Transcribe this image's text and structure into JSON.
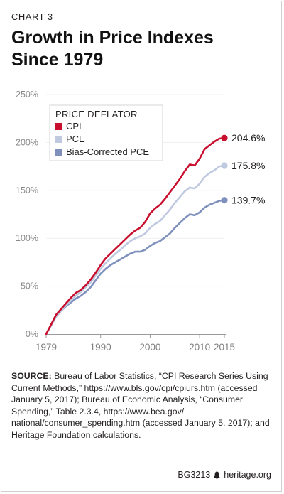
{
  "header": {
    "kicker": "CHART 3",
    "title_line1": "Growth in Price Indexes",
    "title_line2": "Since 1979"
  },
  "chart_data": {
    "type": "line",
    "title": "Growth in Price Indexes Since 1979",
    "xlabel": "",
    "ylabel": "",
    "xlim": [
      1979,
      2015
    ],
    "ylim": [
      0,
      250
    ],
    "x_ticks": [
      "1979",
      "1990",
      "2000",
      "2010",
      "2015"
    ],
    "y_ticks": [
      "0%",
      "50%",
      "100%",
      "150%",
      "200%",
      "250%"
    ],
    "legend": {
      "title": "PRICE DEFLATOR",
      "placement": "top-left"
    },
    "x": [
      1979,
      1980,
      1981,
      1982,
      1983,
      1984,
      1985,
      1986,
      1987,
      1988,
      1989,
      1990,
      1991,
      1992,
      1993,
      1994,
      1995,
      1996,
      1997,
      1998,
      1999,
      2000,
      2001,
      2002,
      2003,
      2004,
      2005,
      2006,
      2007,
      2008,
      2009,
      2010,
      2011,
      2012,
      2013,
      2014,
      2015
    ],
    "series": [
      {
        "name": "CPI",
        "color": "#c8102e",
        "end_label": "204.6%",
        "values": [
          0,
          10,
          20,
          26,
          32,
          38,
          43,
          46,
          51,
          57,
          64,
          72,
          79,
          84,
          89,
          94,
          99,
          104,
          108,
          111,
          117,
          126,
          131,
          135,
          141,
          148,
          155,
          162,
          170,
          177,
          176,
          183,
          193,
          197,
          201,
          204,
          204.6
        ]
      },
      {
        "name": "PCE",
        "color": "#bfc9e0",
        "end_label": "175.8%",
        "values": [
          0,
          9,
          18,
          24,
          30,
          35,
          40,
          44,
          49,
          54,
          61,
          68,
          74,
          79,
          84,
          88,
          93,
          97,
          100,
          102,
          105,
          111,
          115,
          118,
          124,
          130,
          137,
          143,
          149,
          153,
          152,
          157,
          164,
          168,
          171,
          175,
          175.8
        ]
      },
      {
        "name": "Bias-Corrected PCE",
        "color": "#7f90bd",
        "end_label": "139.7%",
        "values": [
          0,
          9,
          18,
          24,
          29,
          33,
          37,
          40,
          44,
          49,
          56,
          63,
          68,
          72,
          75,
          78,
          81,
          84,
          86,
          86,
          88,
          92,
          95,
          97,
          101,
          105,
          111,
          116,
          121,
          125,
          124,
          127,
          132,
          135,
          137,
          139,
          139.7
        ]
      }
    ]
  },
  "source": {
    "label": "SOURCE:",
    "text": "Bureau of Labor Statistics, “CPI Research Series Using Current Methods,” https://www.bls.gov/cpi/cpiurs.htm (accessed January 5, 2017); Bureau of Economic Analysis, “Consumer Spending,” Table 2.3.4, https://www.bea.gov/ national/consumer_spending.htm (accessed January 5, 2017); and Heritage Foundation calculations."
  },
  "footer": {
    "code": "BG3213",
    "site": "heritage.org"
  }
}
